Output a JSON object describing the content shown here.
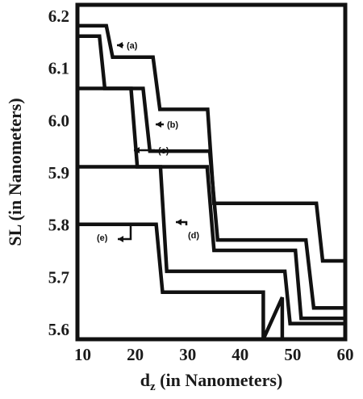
{
  "chart_data": {
    "type": "line",
    "title": "",
    "xlabel_main": "d",
    "xlabel_sub": "z",
    "xlabel_rest": " (in Nanometers)",
    "ylabel": "SL (in Nanometers)",
    "xlim": [
      9,
      60
    ],
    "ylim": [
      5.58,
      6.22
    ],
    "x_ticks": [
      10,
      20,
      30,
      40,
      50,
      60
    ],
    "x_tick_labels": [
      "10",
      "20",
      "30",
      "40",
      "50",
      "60"
    ],
    "y_ticks": [
      5.6,
      5.7,
      5.8,
      5.9,
      6.0,
      6.1,
      6.2
    ],
    "y_tick_labels": [
      "5.6",
      "5.7",
      "5.8",
      "5.9",
      "6.0",
      "6.1",
      "6.2"
    ],
    "grid": false,
    "line_shape": "step",
    "series": [
      {
        "name": "(a)",
        "x": [
          9,
          14.5,
          15.7,
          23.4,
          24.7,
          33.8,
          35.0,
          54.5,
          55.7,
          60
        ],
        "y": [
          6.18,
          6.18,
          6.12,
          6.12,
          6.02,
          6.02,
          5.84,
          5.84,
          5.73,
          5.73
        ]
      },
      {
        "name": "(b)",
        "x": [
          9,
          13.2,
          14.2,
          21.5,
          22.8,
          34.2,
          35.7,
          52.5,
          54.0,
          60
        ],
        "y": [
          6.16,
          6.16,
          6.06,
          6.06,
          5.94,
          5.94,
          5.77,
          5.77,
          5.64,
          5.64
        ]
      },
      {
        "name": "(c)",
        "x": [
          9,
          19.2,
          20.4,
          33.7,
          35.0,
          50.5,
          51.6,
          60
        ],
        "y": [
          6.06,
          6.06,
          5.91,
          5.91,
          5.75,
          5.75,
          5.62,
          5.62
        ]
      },
      {
        "name": "(d)",
        "x": [
          9,
          24.8,
          26.0,
          48.5,
          49.5,
          60
        ],
        "y": [
          5.91,
          5.91,
          5.71,
          5.71,
          5.61,
          5.61
        ]
      },
      {
        "name": "(e)",
        "x": [
          9,
          24.0,
          25.2,
          44.4,
          44.4,
          48.0,
          48.0
        ],
        "y": [
          5.8,
          5.8,
          5.67,
          5.67,
          5.58,
          5.66,
          5.58
        ]
      }
    ],
    "annotations": [
      {
        "label": "(a)",
        "arrow_to_series": "(a)"
      },
      {
        "label": "(b)",
        "arrow_to_series": "(b)"
      },
      {
        "label": "(c)",
        "arrow_to_series": "(c)"
      },
      {
        "label": "(d)",
        "arrow_to_series": "(d)"
      },
      {
        "label": "(e)",
        "arrow_to_series": "(e)"
      }
    ]
  }
}
